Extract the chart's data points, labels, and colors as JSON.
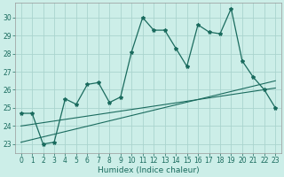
{
  "title": "",
  "xlabel": "Humidex (Indice chaleur)",
  "background_color": "#cceee8",
  "grid_color": "#aad4ce",
  "line_color": "#1a6b5e",
  "xlim": [
    -0.5,
    23.5
  ],
  "ylim": [
    22.5,
    30.8
  ],
  "yticks": [
    23,
    24,
    25,
    26,
    27,
    28,
    29,
    30
  ],
  "xticks": [
    0,
    1,
    2,
    3,
    4,
    5,
    6,
    7,
    8,
    9,
    10,
    11,
    12,
    13,
    14,
    15,
    16,
    17,
    18,
    19,
    20,
    21,
    22,
    23
  ],
  "main_y": [
    24.7,
    24.7,
    23.0,
    23.1,
    25.5,
    25.2,
    26.3,
    26.4,
    25.3,
    25.6,
    28.1,
    30.0,
    29.3,
    29.3,
    28.3,
    27.3,
    29.6,
    29.2,
    29.1,
    30.5,
    27.6,
    26.7,
    26.0,
    25.0
  ],
  "trend1_x": [
    0,
    23
  ],
  "trend1_y": [
    23.1,
    26.5
  ],
  "trend2_x": [
    0,
    23
  ],
  "trend2_y": [
    24.0,
    26.1
  ],
  "xlabel_fontsize": 6.5,
  "tick_fontsize": 5.5
}
